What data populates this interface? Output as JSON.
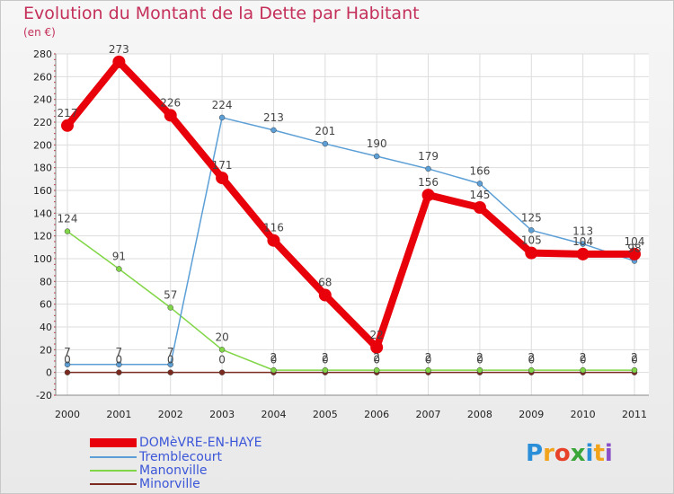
{
  "chart_data": {
    "type": "line",
    "title": "Evolution du Montant de la Dette par Habitant",
    "unit_label": "(en €)",
    "xlabel": "",
    "ylabel": "",
    "categories": [
      "2000",
      "2001",
      "2002",
      "2003",
      "2004",
      "2005",
      "2006",
      "2007",
      "2008",
      "2009",
      "2010",
      "2011"
    ],
    "ylim": [
      -20,
      280
    ],
    "yticks": [
      -20,
      0,
      20,
      40,
      60,
      80,
      100,
      120,
      140,
      160,
      180,
      200,
      220,
      240,
      260,
      280
    ],
    "grid": true,
    "legend_position": "bottom-left",
    "series": [
      {
        "name": "DOMèVRE-EN-HAYE",
        "color": "#e8000b",
        "values": [
          217,
          273,
          226,
          171,
          116,
          68,
          22,
          156,
          145,
          105,
          104,
          104
        ],
        "labels": [
          "217",
          "273",
          "226",
          "171",
          "116",
          "68",
          "22",
          "156",
          "145",
          "105",
          "104",
          "104"
        ]
      },
      {
        "name": "Tremblecourt",
        "color": "#5c9fd6",
        "values": [
          7,
          7,
          7,
          224,
          213,
          201,
          190,
          179,
          166,
          125,
          113,
          98
        ],
        "labels": [
          "7",
          "7",
          "7",
          "224",
          "213",
          "201",
          "190",
          "179",
          "166",
          "125",
          "113",
          "98"
        ]
      },
      {
        "name": "Manonville",
        "color": "#80d646",
        "values": [
          124,
          91,
          57,
          20,
          2,
          2,
          2,
          2,
          2,
          2,
          2,
          2
        ],
        "labels": [
          "124",
          "91",
          "57",
          "20",
          "2",
          "2",
          "2",
          "2",
          "2",
          "2",
          "2",
          "2"
        ]
      },
      {
        "name": "Minorville",
        "color": "#7a2a1e",
        "values": [
          0,
          0,
          0,
          0,
          0,
          0,
          0,
          0,
          0,
          0,
          0,
          0
        ],
        "labels": [
          "0",
          "0",
          "0",
          "0",
          "0",
          "0",
          "0",
          "0",
          "0",
          "0",
          "0",
          "0"
        ]
      }
    ]
  },
  "logo": {
    "text": "Proxiti",
    "colors": [
      "#2a8fd8",
      "#f2a31c",
      "#e8412a",
      "#3aa63a",
      "#2a8fd8",
      "#f2a31c",
      "#8a4fc8"
    ]
  }
}
